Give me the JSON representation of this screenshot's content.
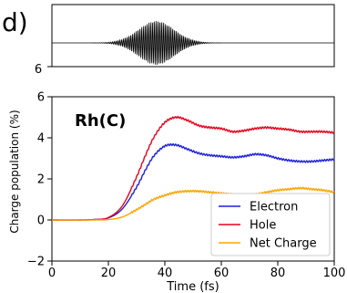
{
  "panel_label": "d)",
  "chart_data": [
    {
      "type": "line",
      "role": "laser-pulse-inset",
      "ytick_labels": [
        "6"
      ],
      "description_free": true,
      "pulse": {
        "center_fs": 37,
        "width_fs": 9,
        "cycles_per_fs": 1.55,
        "amplitude": 1
      }
    },
    {
      "type": "line",
      "title": "",
      "annotation": "Rh(C)",
      "xlabel": "Time (fs)",
      "ylabel": "Charge population (%)",
      "xlim": [
        0,
        100
      ],
      "ylim": [
        -2,
        6
      ],
      "xticks": [
        0,
        20,
        40,
        60,
        80,
        100
      ],
      "yticks": [
        -2,
        0,
        2,
        4,
        6
      ],
      "legend_placement": "lower-right",
      "series": [
        {
          "name": "Electron",
          "color": "#1f1fe0",
          "x": [
            0,
            10,
            15,
            20,
            25,
            30,
            33,
            36,
            40,
            44,
            48,
            52,
            56,
            60,
            64,
            68,
            72,
            76,
            80,
            84,
            88,
            92,
            96,
            100
          ],
          "y": [
            0,
            0,
            0.02,
            0.1,
            0.55,
            1.6,
            2.4,
            3.1,
            3.6,
            3.65,
            3.45,
            3.25,
            3.15,
            3.1,
            3.05,
            3.1,
            3.2,
            3.15,
            3.0,
            2.9,
            2.85,
            2.85,
            2.9,
            2.95
          ]
        },
        {
          "name": "Hole",
          "color": "#e8001c",
          "x": [
            0,
            10,
            15,
            20,
            25,
            30,
            33,
            36,
            40,
            44,
            48,
            52,
            56,
            60,
            64,
            68,
            72,
            76,
            80,
            84,
            88,
            92,
            96,
            100
          ],
          "y": [
            0,
            0,
            0.02,
            0.12,
            0.7,
            2.1,
            3.1,
            4.0,
            4.75,
            5.0,
            4.85,
            4.6,
            4.5,
            4.45,
            4.3,
            4.35,
            4.45,
            4.5,
            4.45,
            4.4,
            4.3,
            4.3,
            4.3,
            4.25
          ]
        },
        {
          "name": "Net Charge",
          "color": "#ffa500",
          "x": [
            0,
            10,
            15,
            20,
            25,
            30,
            33,
            36,
            40,
            44,
            48,
            52,
            56,
            60,
            64,
            68,
            72,
            76,
            80,
            84,
            88,
            92,
            96,
            100
          ],
          "y": [
            0,
            0,
            0.0,
            0.02,
            0.15,
            0.5,
            0.75,
            1.0,
            1.2,
            1.35,
            1.4,
            1.4,
            1.35,
            1.3,
            1.25,
            1.2,
            1.25,
            1.35,
            1.45,
            1.5,
            1.55,
            1.5,
            1.45,
            1.35
          ]
        }
      ]
    }
  ]
}
